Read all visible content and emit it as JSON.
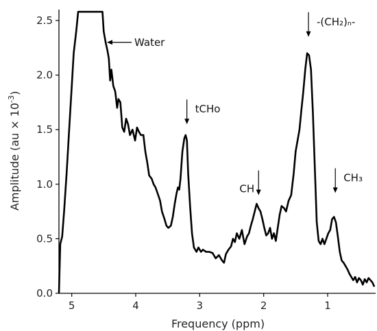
{
  "chart_data": {
    "type": "line",
    "title": "",
    "xlabel": "Frequency (ppm)",
    "ylabel_main": "Amplitude (au × 10",
    "ylabel_exp": "-3",
    "ylabel_close": ")",
    "xlim": [
      5.2,
      0.25
    ],
    "x_reversed": true,
    "ylim": [
      0,
      2.6
    ],
    "grid": false,
    "legend": "none",
    "x_ticks": [
      {
        "value": 5,
        "label": "5"
      },
      {
        "value": 4,
        "label": "4"
      },
      {
        "value": 3,
        "label": "3"
      },
      {
        "value": 2,
        "label": "2"
      },
      {
        "value": 1,
        "label": "1"
      }
    ],
    "y_ticks": [
      {
        "value": 0.0,
        "label": "0.0"
      },
      {
        "value": 0.5,
        "label": "0.5"
      },
      {
        "value": 1.0,
        "label": "1.0"
      },
      {
        "value": 1.5,
        "label": "1.5"
      },
      {
        "value": 2.0,
        "label": "2.0"
      },
      {
        "value": 2.5,
        "label": "2.5"
      }
    ],
    "series": [
      {
        "color": "#000000",
        "points": [
          [
            5.2,
            0.0
          ],
          [
            5.18,
            0.45
          ],
          [
            5.15,
            0.52
          ],
          [
            5.12,
            0.75
          ],
          [
            5.08,
            1.1
          ],
          [
            5.04,
            1.5
          ],
          [
            5.0,
            1.9
          ],
          [
            4.97,
            2.2
          ],
          [
            4.93,
            2.4
          ],
          [
            4.9,
            2.58
          ],
          [
            4.85,
            2.58
          ],
          [
            4.7,
            2.58
          ],
          [
            4.6,
            2.58
          ],
          [
            4.52,
            2.58
          ],
          [
            4.5,
            2.4
          ],
          [
            4.47,
            2.3
          ],
          [
            4.44,
            2.22
          ],
          [
            4.42,
            2.15
          ],
          [
            4.4,
            1.95
          ],
          [
            4.38,
            2.05
          ],
          [
            4.35,
            1.9
          ],
          [
            4.32,
            1.85
          ],
          [
            4.29,
            1.7
          ],
          [
            4.27,
            1.78
          ],
          [
            4.24,
            1.75
          ],
          [
            4.21,
            1.52
          ],
          [
            4.18,
            1.48
          ],
          [
            4.15,
            1.6
          ],
          [
            4.12,
            1.55
          ],
          [
            4.09,
            1.45
          ],
          [
            4.05,
            1.5
          ],
          [
            4.01,
            1.4
          ],
          [
            3.98,
            1.52
          ],
          [
            3.95,
            1.48
          ],
          [
            3.92,
            1.45
          ],
          [
            3.88,
            1.45
          ],
          [
            3.85,
            1.3
          ],
          [
            3.82,
            1.2
          ],
          [
            3.79,
            1.08
          ],
          [
            3.75,
            1.05
          ],
          [
            3.72,
            1.0
          ],
          [
            3.69,
            0.97
          ],
          [
            3.66,
            0.92
          ],
          [
            3.62,
            0.85
          ],
          [
            3.59,
            0.75
          ],
          [
            3.55,
            0.68
          ],
          [
            3.52,
            0.62
          ],
          [
            3.49,
            0.6
          ],
          [
            3.45,
            0.62
          ],
          [
            3.42,
            0.7
          ],
          [
            3.39,
            0.82
          ],
          [
            3.36,
            0.92
          ],
          [
            3.34,
            0.97
          ],
          [
            3.32,
            0.95
          ],
          [
            3.3,
            1.05
          ],
          [
            3.27,
            1.3
          ],
          [
            3.24,
            1.42
          ],
          [
            3.22,
            1.45
          ],
          [
            3.2,
            1.4
          ],
          [
            3.18,
            1.1
          ],
          [
            3.15,
            0.8
          ],
          [
            3.12,
            0.55
          ],
          [
            3.09,
            0.42
          ],
          [
            3.05,
            0.38
          ],
          [
            3.02,
            0.42
          ],
          [
            2.98,
            0.38
          ],
          [
            2.95,
            0.4
          ],
          [
            2.9,
            0.38
          ],
          [
            2.85,
            0.38
          ],
          [
            2.8,
            0.37
          ],
          [
            2.75,
            0.32
          ],
          [
            2.7,
            0.35
          ],
          [
            2.65,
            0.3
          ],
          [
            2.62,
            0.28
          ],
          [
            2.59,
            0.36
          ],
          [
            2.55,
            0.4
          ],
          [
            2.51,
            0.43
          ],
          [
            2.48,
            0.5
          ],
          [
            2.45,
            0.47
          ],
          [
            2.42,
            0.55
          ],
          [
            2.38,
            0.5
          ],
          [
            2.34,
            0.58
          ],
          [
            2.3,
            0.45
          ],
          [
            2.26,
            0.52
          ],
          [
            2.23,
            0.55
          ],
          [
            2.2,
            0.62
          ],
          [
            2.17,
            0.68
          ],
          [
            2.14,
            0.75
          ],
          [
            2.11,
            0.82
          ],
          [
            2.08,
            0.78
          ],
          [
            2.05,
            0.75
          ],
          [
            2.02,
            0.68
          ],
          [
            1.99,
            0.6
          ],
          [
            1.96,
            0.53
          ],
          [
            1.93,
            0.55
          ],
          [
            1.9,
            0.6
          ],
          [
            1.87,
            0.5
          ],
          [
            1.84,
            0.55
          ],
          [
            1.81,
            0.48
          ],
          [
            1.78,
            0.6
          ],
          [
            1.75,
            0.72
          ],
          [
            1.72,
            0.8
          ],
          [
            1.68,
            0.78
          ],
          [
            1.65,
            0.75
          ],
          [
            1.61,
            0.85
          ],
          [
            1.57,
            0.9
          ],
          [
            1.53,
            1.1
          ],
          [
            1.5,
            1.3
          ],
          [
            1.47,
            1.4
          ],
          [
            1.44,
            1.5
          ],
          [
            1.41,
            1.68
          ],
          [
            1.38,
            1.85
          ],
          [
            1.35,
            2.05
          ],
          [
            1.32,
            2.2
          ],
          [
            1.29,
            2.18
          ],
          [
            1.26,
            2.05
          ],
          [
            1.23,
            1.65
          ],
          [
            1.2,
            1.15
          ],
          [
            1.17,
            0.65
          ],
          [
            1.14,
            0.48
          ],
          [
            1.11,
            0.45
          ],
          [
            1.08,
            0.5
          ],
          [
            1.05,
            0.45
          ],
          [
            1.02,
            0.5
          ],
          [
            0.99,
            0.55
          ],
          [
            0.96,
            0.58
          ],
          [
            0.93,
            0.68
          ],
          [
            0.9,
            0.7
          ],
          [
            0.87,
            0.65
          ],
          [
            0.84,
            0.52
          ],
          [
            0.81,
            0.38
          ],
          [
            0.78,
            0.3
          ],
          [
            0.75,
            0.28
          ],
          [
            0.72,
            0.25
          ],
          [
            0.69,
            0.22
          ],
          [
            0.66,
            0.18
          ],
          [
            0.63,
            0.15
          ],
          [
            0.6,
            0.12
          ],
          [
            0.57,
            0.15
          ],
          [
            0.54,
            0.1
          ],
          [
            0.51,
            0.14
          ],
          [
            0.48,
            0.12
          ],
          [
            0.45,
            0.08
          ],
          [
            0.42,
            0.13
          ],
          [
            0.39,
            0.1
          ],
          [
            0.36,
            0.14
          ],
          [
            0.33,
            0.12
          ],
          [
            0.3,
            0.1
          ],
          [
            0.27,
            0.06
          ]
        ]
      }
    ],
    "annotations": [
      {
        "label": "Water",
        "x": 4.45,
        "y": 2.3,
        "arrow": "left"
      },
      {
        "label": "tCHo",
        "x": 3.2,
        "y": 1.55,
        "arrow": "down"
      },
      {
        "label": "CH",
        "x": 2.08,
        "y": 0.9,
        "arrow": "down"
      },
      {
        "label": "-(CH₂)ₙ-",
        "x": 1.3,
        "y": 2.35,
        "arrow": "down"
      },
      {
        "label": "CH₃",
        "x": 0.88,
        "y": 0.92,
        "arrow": "down"
      }
    ]
  }
}
